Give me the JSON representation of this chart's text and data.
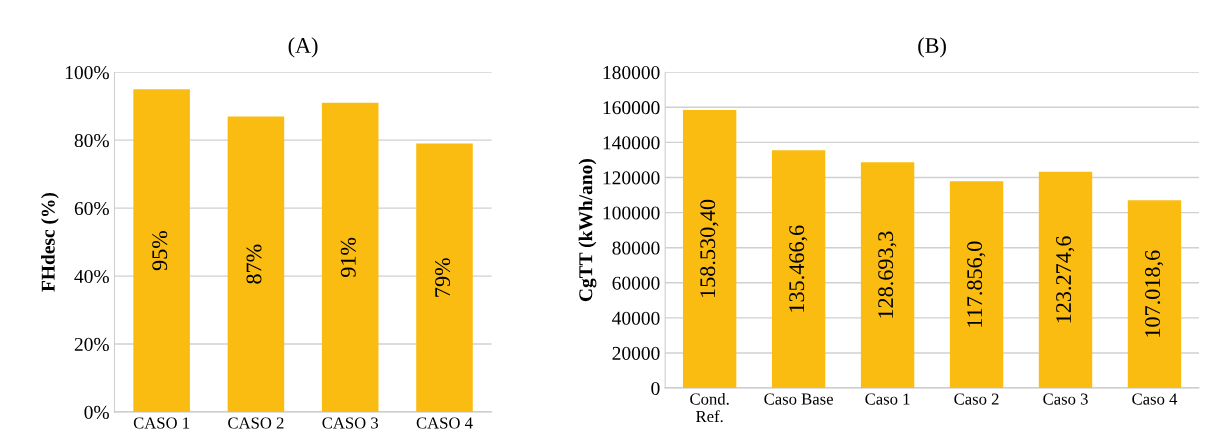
{
  "chart_data": [
    {
      "type": "bar",
      "title": "(A)",
      "ylabel": "FHdesc (%)",
      "categories": [
        "CASO 1",
        "CASO 2",
        "CASO 3",
        "CASO 4"
      ],
      "color": "#fbbc12",
      "values": [
        95,
        87,
        91,
        79
      ],
      "value_labels": [
        "95%",
        "87%",
        "91%",
        "79%"
      ],
      "ylim": [
        0,
        100
      ],
      "yticks": [
        {
          "value": 0,
          "label": "0%"
        },
        {
          "value": 20,
          "label": "20%"
        },
        {
          "value": 40,
          "label": "40%"
        },
        {
          "value": 60,
          "label": "60%"
        },
        {
          "value": 80,
          "label": "80%"
        },
        {
          "value": 100,
          "label": "100%"
        }
      ],
      "grid": "y",
      "legend": false
    },
    {
      "type": "bar",
      "title": "(B)",
      "ylabel": "CgTT (kWh/ano)",
      "categories": [
        "Cond.\nRef.",
        "Caso Base",
        "Caso 1",
        "Caso 2",
        "Caso 3",
        "Caso 4"
      ],
      "color": "#fbbc12",
      "values": [
        158530.4,
        135466.6,
        128693.3,
        117856.0,
        123274.6,
        107018.6
      ],
      "value_labels": [
        "158.530,40",
        "135.466,6",
        "128.693,3",
        "117.856,0",
        "123.274,6",
        "107.018,6"
      ],
      "ylim": [
        0,
        180000
      ],
      "yticks": [
        0,
        20000,
        40000,
        60000,
        80000,
        100000,
        120000,
        140000,
        160000,
        180000
      ],
      "grid": "y",
      "legend": false
    }
  ]
}
